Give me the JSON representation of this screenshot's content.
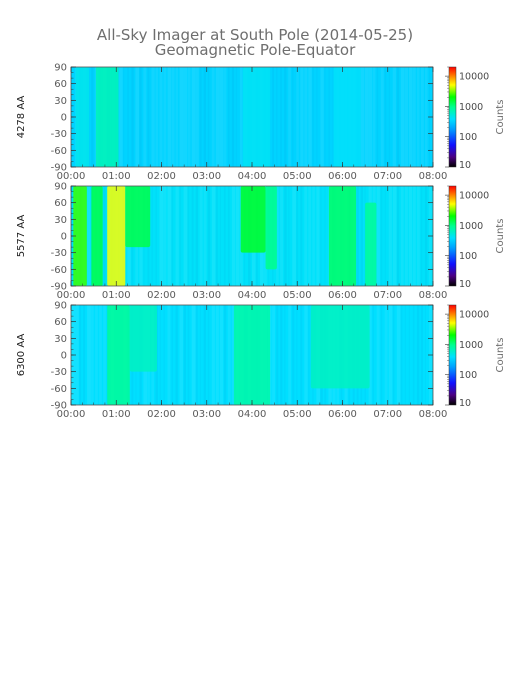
{
  "figure": {
    "title_line1": "All-Sky Imager at South Pole (2014-05-25)",
    "title_line2": "Geomagnetic Pole-Equator"
  },
  "chart_data": [
    {
      "type": "heatmap",
      "panel_label": "4278 AA",
      "x_ticks": [
        "00:00",
        "01:00",
        "02:00",
        "03:00",
        "04:00",
        "05:00",
        "06:00",
        "07:00",
        "08:00"
      ],
      "xlim": [
        "00:00",
        "08:00"
      ],
      "y_ticks": [
        "90",
        "60",
        "30",
        "0",
        "-30",
        "-60",
        "-90"
      ],
      "ylim": [
        -90,
        90
      ],
      "colorbar": {
        "label": "Counts",
        "scale": "log",
        "range": [
          10,
          20000
        ],
        "ticks": [
          "10000",
          "1000",
          "100",
          "10"
        ]
      },
      "background_level": 330,
      "features": [
        {
          "t_start": 0.55,
          "t_end": 1.05,
          "lat_min": -90,
          "lat_max": 90,
          "counts": 700
        },
        {
          "t_start": 0.1,
          "t_end": 0.4,
          "lat_min": -90,
          "lat_max": 90,
          "counts": 450
        },
        {
          "t_start": 3.8,
          "t_end": 4.4,
          "lat_min": -90,
          "lat_max": 90,
          "counts": 420
        },
        {
          "t_start": 5.8,
          "t_end": 6.4,
          "lat_min": -90,
          "lat_max": 90,
          "counts": 400
        }
      ]
    },
    {
      "type": "heatmap",
      "panel_label": "5577 AA",
      "x_ticks": [
        "00:00",
        "01:00",
        "02:00",
        "03:00",
        "04:00",
        "05:00",
        "06:00",
        "07:00",
        "08:00"
      ],
      "xlim": [
        "00:00",
        "08:00"
      ],
      "y_ticks": [
        "90",
        "60",
        "30",
        "0",
        "-30",
        "-60",
        "-90"
      ],
      "ylim": [
        -90,
        90
      ],
      "colorbar": {
        "label": "Counts",
        "scale": "log",
        "range": [
          10,
          20000
        ],
        "ticks": [
          "10000",
          "1000",
          "100",
          "10"
        ]
      },
      "background_level": 400,
      "features": [
        {
          "t_start": 0.05,
          "t_end": 0.35,
          "lat_min": -90,
          "lat_max": 90,
          "counts": 2500
        },
        {
          "t_start": 0.45,
          "t_end": 0.7,
          "lat_min": -90,
          "lat_max": 90,
          "counts": 1400
        },
        {
          "t_start": 0.8,
          "t_end": 1.2,
          "lat_min": -90,
          "lat_max": 90,
          "counts": 5000
        },
        {
          "t_start": 1.2,
          "t_end": 1.75,
          "lat_min": -20,
          "lat_max": 90,
          "counts": 1400
        },
        {
          "t_start": 3.75,
          "t_end": 4.3,
          "lat_min": -30,
          "lat_max": 90,
          "counts": 1700
        },
        {
          "t_start": 4.3,
          "t_end": 4.55,
          "lat_min": -60,
          "lat_max": 90,
          "counts": 1000
        },
        {
          "t_start": 5.7,
          "t_end": 6.3,
          "lat_min": -90,
          "lat_max": 90,
          "counts": 1200
        },
        {
          "t_start": 6.5,
          "t_end": 6.75,
          "lat_min": -90,
          "lat_max": 60,
          "counts": 900
        }
      ]
    },
    {
      "type": "heatmap",
      "panel_label": "6300 AA",
      "x_ticks": [
        "00:00",
        "01:00",
        "02:00",
        "03:00",
        "04:00",
        "05:00",
        "06:00",
        "07:00",
        "08:00"
      ],
      "xlim": [
        "00:00",
        "08:00"
      ],
      "y_ticks": [
        "90",
        "60",
        "30",
        "0",
        "-30",
        "-60",
        "-90"
      ],
      "ylim": [
        -90,
        90
      ],
      "colorbar": {
        "label": "Counts",
        "scale": "log",
        "range": [
          10,
          20000
        ],
        "ticks": [
          "10000",
          "1000",
          "100",
          "10"
        ]
      },
      "background_level": 380,
      "features": [
        {
          "t_start": 0.8,
          "t_end": 1.3,
          "lat_min": -90,
          "lat_max": 90,
          "counts": 900
        },
        {
          "t_start": 1.3,
          "t_end": 1.9,
          "lat_min": -30,
          "lat_max": 90,
          "counts": 650
        },
        {
          "t_start": 3.6,
          "t_end": 4.4,
          "lat_min": -90,
          "lat_max": 90,
          "counts": 800
        },
        {
          "t_start": 5.3,
          "t_end": 6.6,
          "lat_min": -60,
          "lat_max": 90,
          "counts": 650
        }
      ]
    }
  ]
}
